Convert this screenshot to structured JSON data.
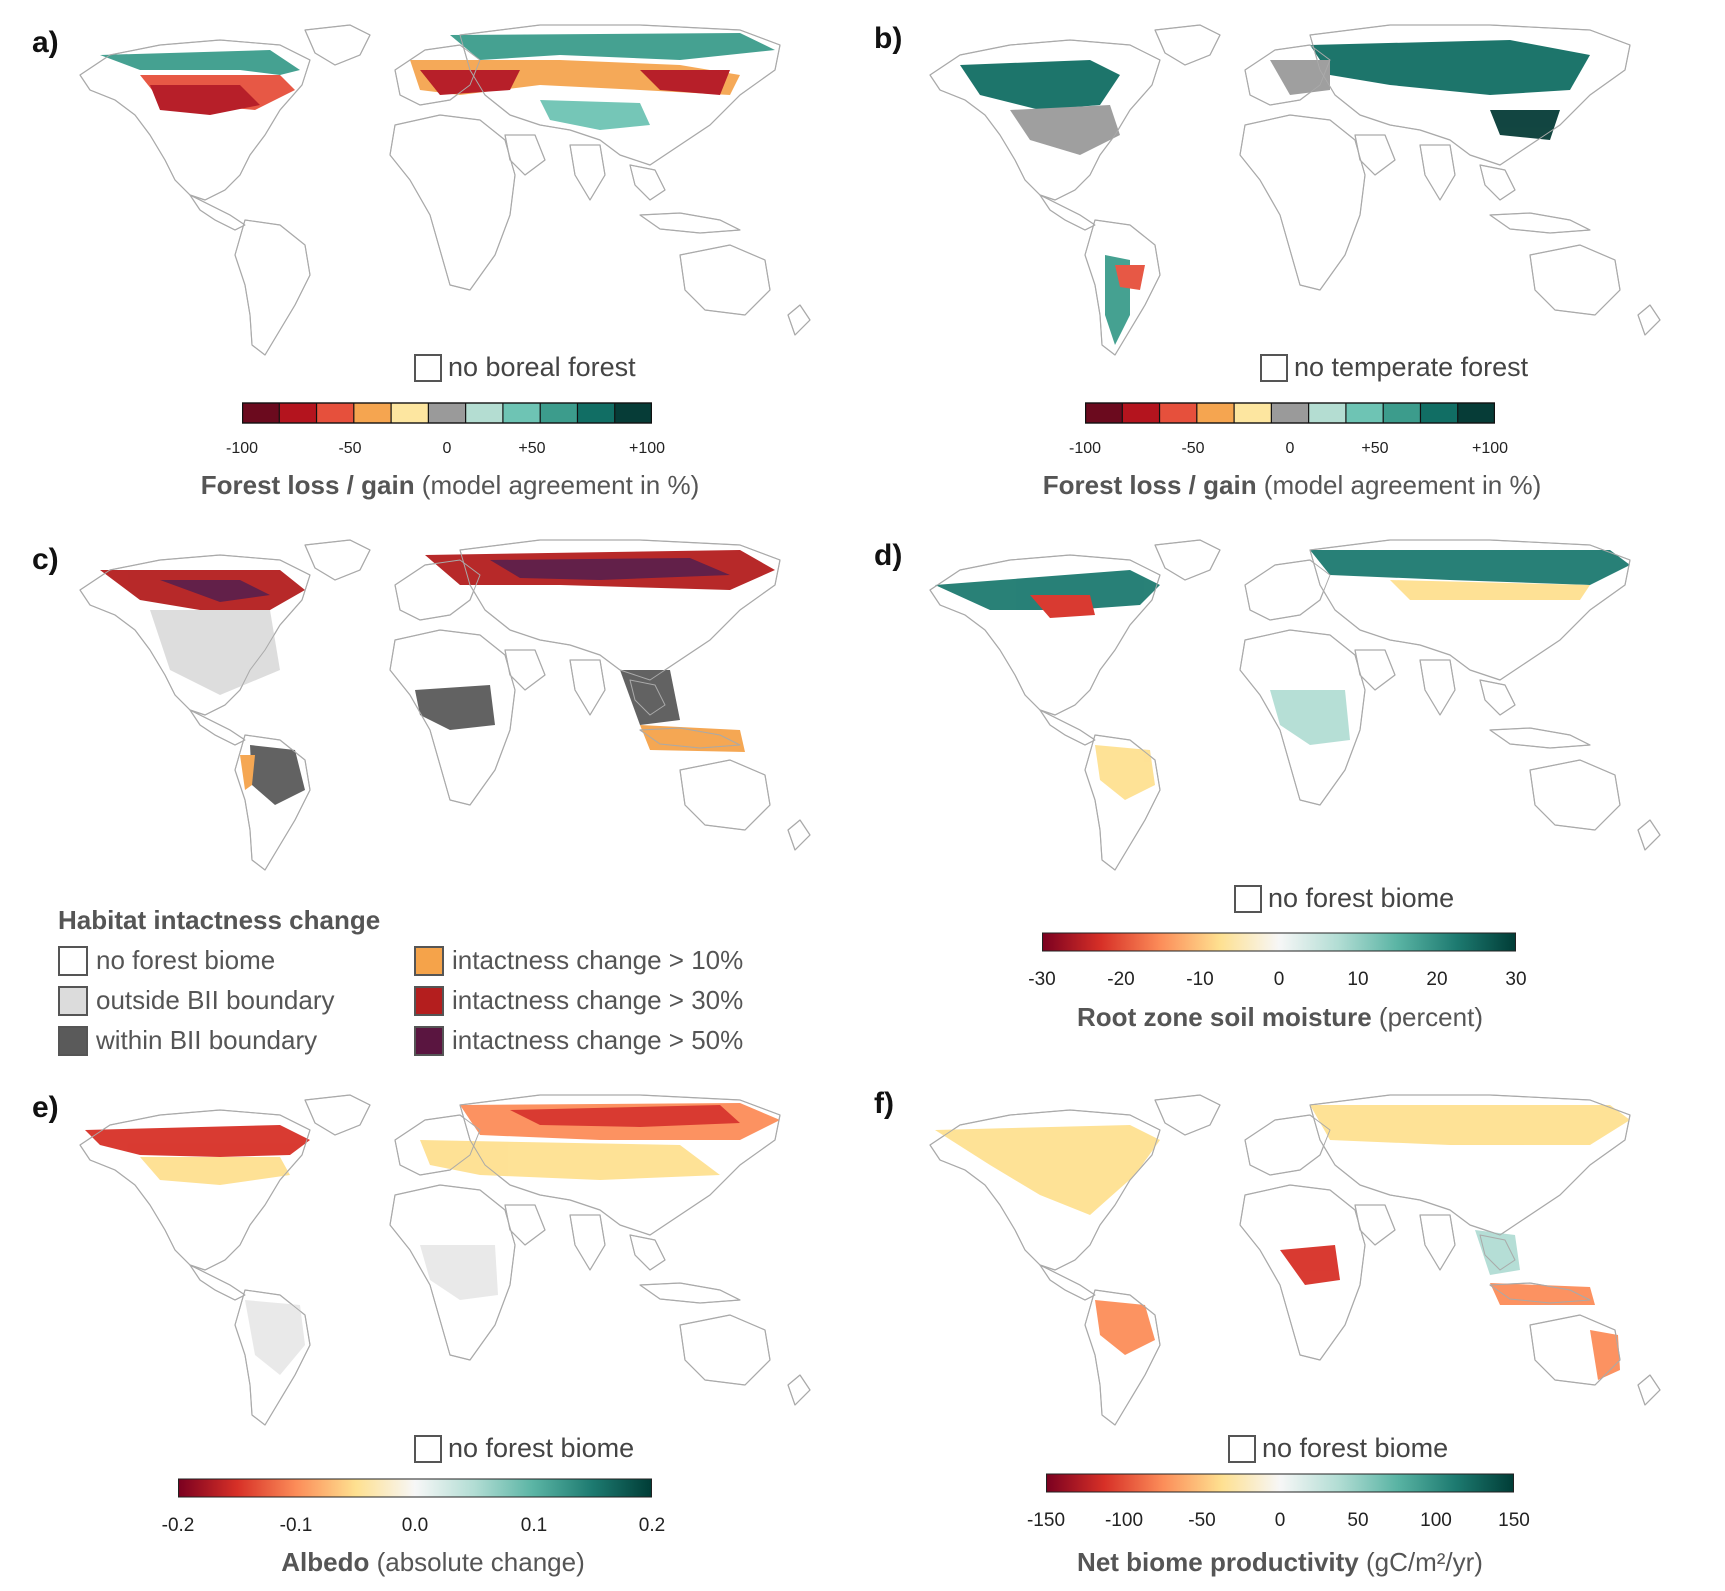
{
  "panels": {
    "a": {
      "label": "a)",
      "no_label": "no boreal forest",
      "title_bold": "Forest loss / gain",
      "title_rest": " (model agreement in %)",
      "ticks": [
        "-100",
        "-50",
        "0",
        "+50",
        "+100"
      ]
    },
    "b": {
      "label": "b)",
      "no_label": "no temperate forest",
      "title_bold": "Forest loss / gain",
      "title_rest": " (model agreement in %)",
      "ticks": [
        "-100",
        "-50",
        "0",
        "+50",
        "+100"
      ]
    },
    "c": {
      "label": "c)"
    },
    "d": {
      "label": "d)",
      "no_label": "no forest biome",
      "title_bold": "Root zone soil moisture",
      "title_rest": " (percent)",
      "ticks": [
        "-30",
        "-20",
        "-10",
        "0",
        "10",
        "20",
        "30"
      ]
    },
    "e": {
      "label": "e)",
      "no_label": "no forest biome",
      "title_bold": "Albedo",
      "title_rest": " (absolute change)",
      "ticks": [
        "-0.2",
        "-0.1",
        "0.0",
        "0.1",
        "0.2"
      ]
    },
    "f": {
      "label": "f)",
      "no_label": "no forest biome",
      "title_bold": "Net biome productivity",
      "title_rest": " (gC/m²/yr)",
      "ticks": [
        "-150",
        "-100",
        "-50",
        "0",
        "50",
        "100",
        "150"
      ]
    }
  },
  "legend_c": {
    "title": "Habitat intactness change",
    "items": [
      {
        "label": "no forest biome",
        "color": "#ffffff"
      },
      {
        "label": "outside BII boundary",
        "color": "#dcdcdc"
      },
      {
        "label": "within BII boundary",
        "color": "#5a5a5a"
      },
      {
        "label": "intactness change > 10%",
        "color": "#f5a34a"
      },
      {
        "label": "intactness change > 30%",
        "color": "#b41e1e"
      },
      {
        "label": "intactness change > 50%",
        "color": "#5a1540"
      }
    ]
  },
  "colors": {
    "discrete_scale": [
      "#6b0a1e",
      "#b4141e",
      "#e6503c",
      "#f5a550",
      "#fde6a0",
      "#9a9a9a",
      "#b4ddd2",
      "#6ec4b4",
      "#3c9c8c",
      "#116e64",
      "#063c37"
    ],
    "diverging_scale": [
      "#7a0020",
      "#d73027",
      "#fc8d59",
      "#fee090",
      "#f7f7f7",
      "#b2ddd4",
      "#5ab4a4",
      "#1d7a70",
      "#003c36"
    ],
    "land_outline": "#aaaaaa"
  }
}
